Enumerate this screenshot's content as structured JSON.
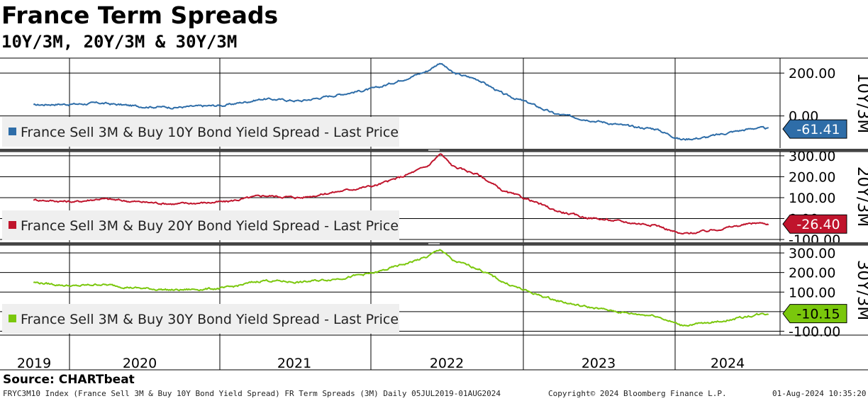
{
  "title": "France Term Spreads",
  "subtitle": "10Y/3M, 20Y/3M & 30Y/3M",
  "source": "Source: CHARTbeat",
  "footer": {
    "left": "FRYC3M10 Index (France Sell 3M & Buy 10Y Bond Yield Spread) FR Term Spreads (3M)  Daily 05JUL2019-01AUG2024",
    "middle": "Copyright© 2024 Bloomberg Finance L.P.",
    "right": "01-Aug-2024 10:35:20"
  },
  "chart_data": {
    "type": "line",
    "x_ticks": [
      "2019",
      "2020",
      "2021",
      "2022",
      "2023",
      "2024"
    ],
    "x_range": [
      "2019-07-05",
      "2024-08-01"
    ],
    "panels": [
      {
        "axis_label": "10Y/3M",
        "legend": "France Sell 3M & Buy 10Y Bond Yield Spread - Last Price",
        "last_value": "-61.41",
        "color": "#2e6da8",
        "ylim": [
          -150,
          270
        ],
        "yticks": [
          "200.00",
          "0.00"
        ],
        "x": [
          "2019-07",
          "2019-10",
          "2020-01",
          "2020-03",
          "2020-06",
          "2020-09",
          "2021-01",
          "2021-04",
          "2021-07",
          "2021-10",
          "2022-01",
          "2022-03",
          "2022-05",
          "2022-06",
          "2022-07",
          "2022-09",
          "2022-11",
          "2023-01",
          "2023-03",
          "2023-05",
          "2023-07",
          "2023-09",
          "2023-11",
          "2024-01",
          "2024-03",
          "2024-05",
          "2024-07",
          "2024-08"
        ],
        "values": [
          50,
          55,
          55,
          60,
          45,
          40,
          50,
          80,
          70,
          100,
          130,
          170,
          210,
          250,
          200,
          170,
          100,
          60,
          10,
          -10,
          -30,
          -50,
          -60,
          -110,
          -100,
          -75,
          -55,
          -61
        ]
      },
      {
        "axis_label": "20Y/3M",
        "legend": "France Sell 3M & Buy 20Y Bond Yield Spread - Last Price",
        "last_value": "-26.40",
        "color": "#c0142c",
        "ylim": [
          -110,
          320
        ],
        "yticks": [
          "300.00",
          "200.00",
          "100.00",
          "0.00",
          "-100.00"
        ],
        "x": [
          "2019-07",
          "2019-10",
          "2020-01",
          "2020-03",
          "2020-06",
          "2020-09",
          "2021-01",
          "2021-04",
          "2021-07",
          "2021-10",
          "2022-01",
          "2022-03",
          "2022-05",
          "2022-06",
          "2022-07",
          "2022-09",
          "2022-11",
          "2023-01",
          "2023-03",
          "2023-05",
          "2023-07",
          "2023-09",
          "2023-11",
          "2024-01",
          "2024-03",
          "2024-05",
          "2024-07",
          "2024-08"
        ],
        "values": [
          90,
          85,
          80,
          95,
          80,
          70,
          80,
          110,
          100,
          130,
          160,
          200,
          250,
          310,
          250,
          210,
          130,
          90,
          40,
          10,
          -5,
          -20,
          -30,
          -75,
          -60,
          -40,
          -20,
          -26
        ]
      },
      {
        "axis_label": "30Y/3M",
        "legend": "France Sell 3M & Buy 30Y Bond Yield Spread - Last Price",
        "last_value": "-10.15",
        "color": "#7ac70c",
        "ylim": [
          -120,
          340
        ],
        "yticks": [
          "300.00",
          "200.00",
          "100.00",
          "0.00",
          "-100.00"
        ],
        "x": [
          "2019-07",
          "2019-10",
          "2020-01",
          "2020-03",
          "2020-06",
          "2020-09",
          "2021-01",
          "2021-04",
          "2021-07",
          "2021-10",
          "2022-01",
          "2022-03",
          "2022-05",
          "2022-06",
          "2022-07",
          "2022-09",
          "2022-11",
          "2023-01",
          "2023-03",
          "2023-05",
          "2023-07",
          "2023-09",
          "2023-11",
          "2024-01",
          "2024-03",
          "2024-05",
          "2024-07",
          "2024-08"
        ],
        "values": [
          150,
          140,
          130,
          140,
          120,
          110,
          120,
          160,
          150,
          170,
          200,
          240,
          280,
          320,
          260,
          220,
          150,
          100,
          60,
          30,
          10,
          -10,
          -20,
          -70,
          -60,
          -40,
          -15,
          -10
        ]
      }
    ]
  }
}
